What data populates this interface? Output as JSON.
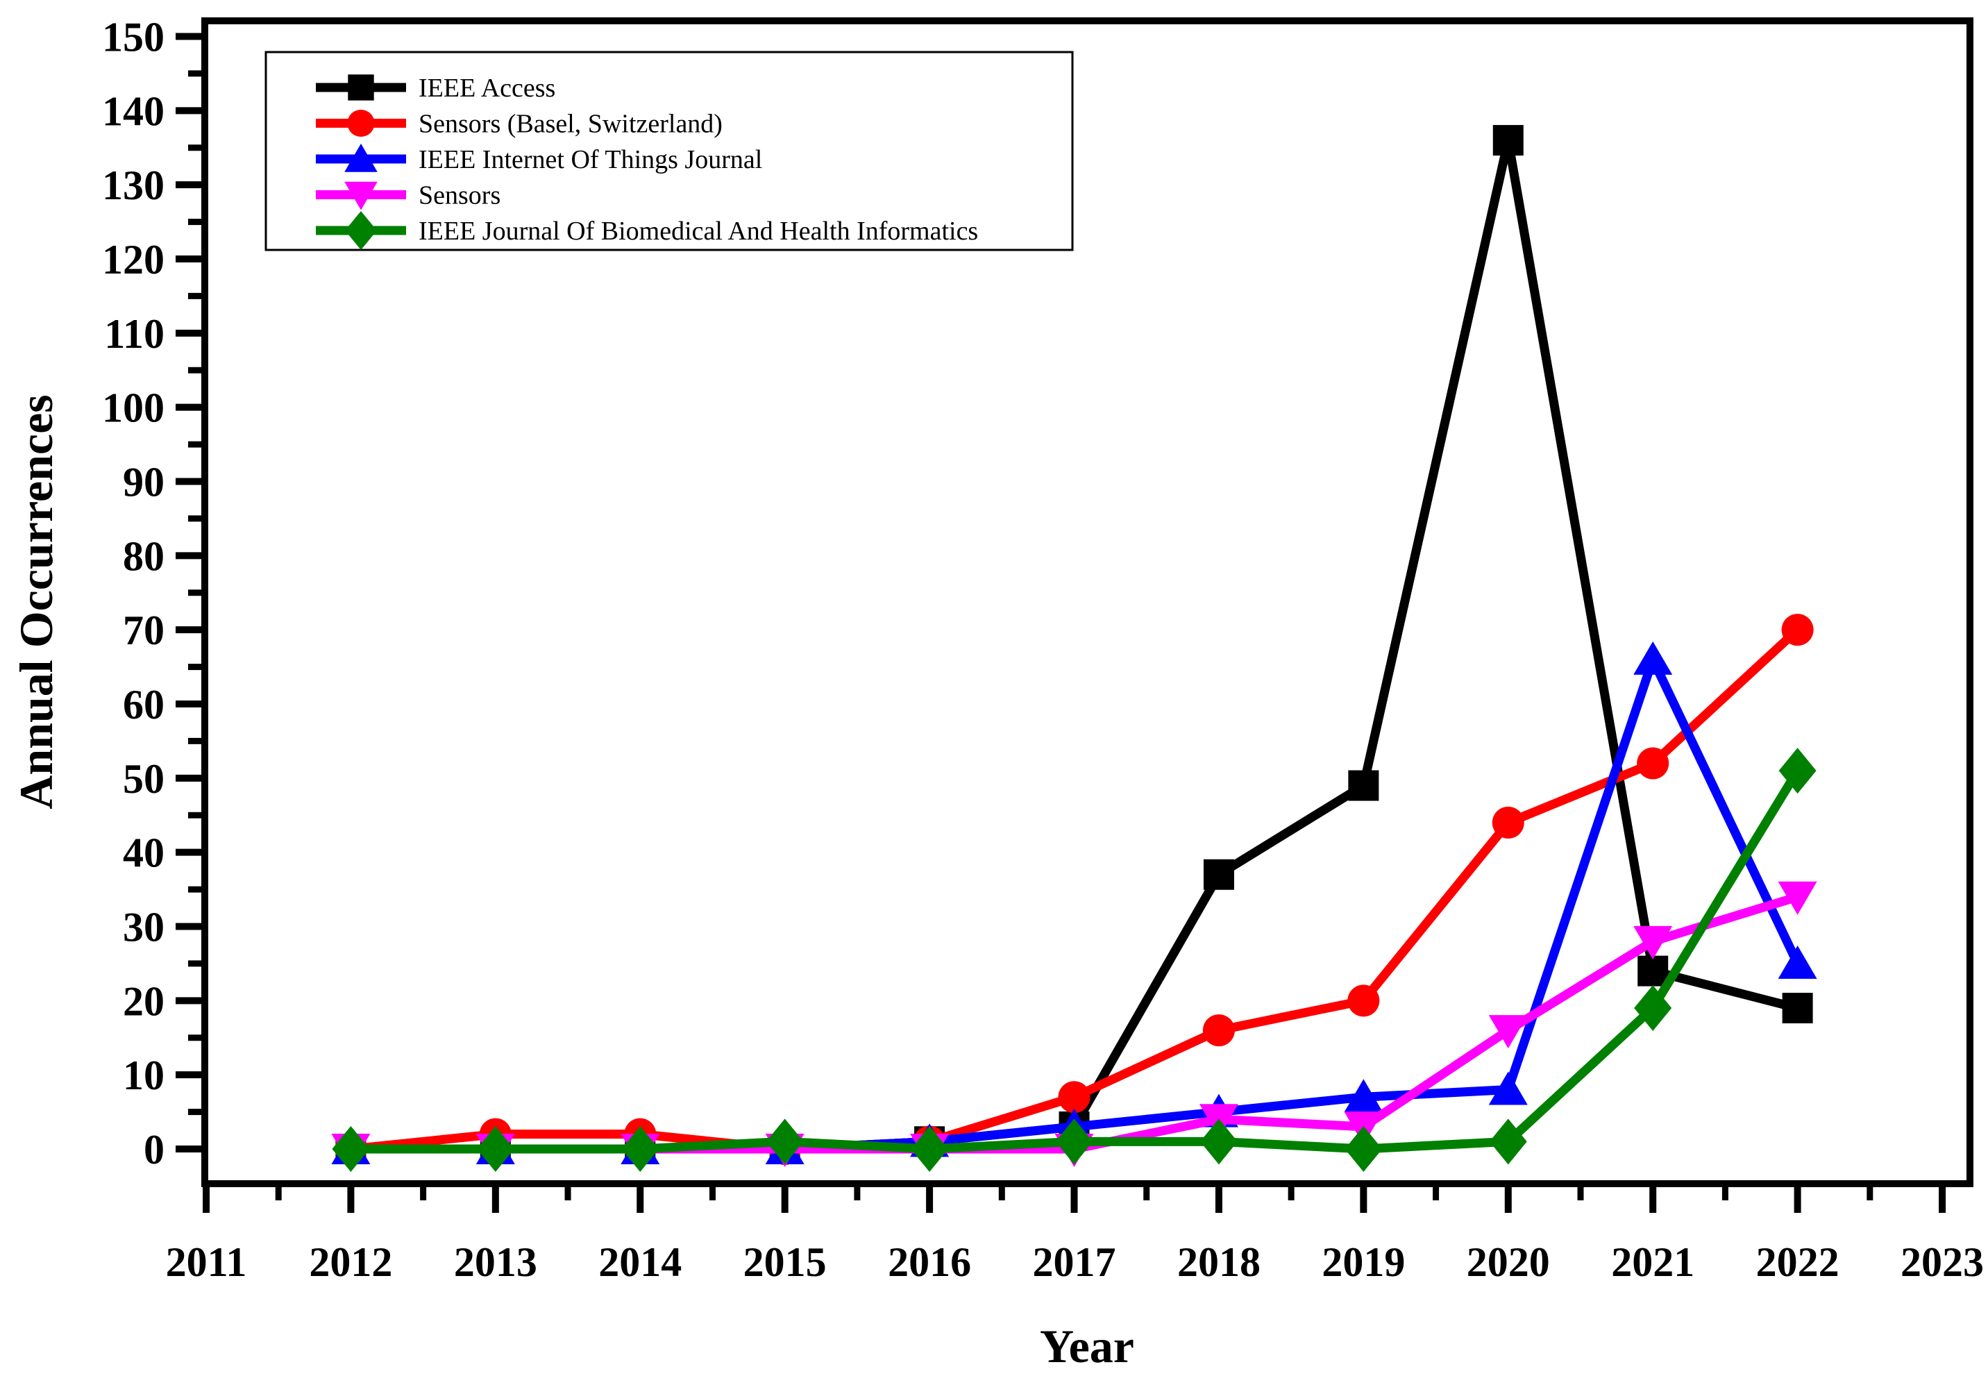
{
  "figure": {
    "background": "#ffffff",
    "axis_color": "#000000"
  },
  "chart_data": {
    "type": "line",
    "title": "",
    "xlabel": "Year",
    "ylabel": "Annual Occurrences",
    "x": [
      2012,
      2013,
      2014,
      2015,
      2016,
      2017,
      2018,
      2019,
      2020,
      2021,
      2022
    ],
    "series": [
      {
        "name": "IEEE Access",
        "color": "#000000",
        "marker": "square",
        "values": [
          0,
          0,
          0,
          0,
          1,
          3,
          37,
          49,
          136,
          24,
          19
        ]
      },
      {
        "name": "Sensors (Basel, Switzerland)",
        "color": "#ff0000",
        "marker": "circle",
        "values": [
          0,
          2,
          2,
          0,
          1,
          7,
          16,
          20,
          44,
          52,
          70
        ]
      },
      {
        "name": "IEEE Internet Of Things Journal",
        "color": "#0000ff",
        "marker": "triangle-up",
        "values": [
          0,
          0,
          0,
          0,
          1,
          3,
          5,
          7,
          8,
          66,
          25
        ]
      },
      {
        "name": "Sensors",
        "color": "#ff00ff",
        "marker": "triangle-down",
        "values": [
          0,
          0,
          0,
          0,
          0,
          0,
          4,
          3,
          16,
          28,
          34
        ]
      },
      {
        "name": "IEEE Journal Of Biomedical And Health Informatics",
        "color": "#008000",
        "marker": "diamond",
        "values": [
          0,
          0,
          0,
          1,
          0,
          1,
          1,
          0,
          1,
          19,
          51
        ]
      }
    ],
    "xticks": [
      2011,
      2012,
      2013,
      2014,
      2015,
      2016,
      2017,
      2018,
      2019,
      2020,
      2021,
      2022,
      2023
    ],
    "yticks": [
      0,
      10,
      20,
      30,
      40,
      50,
      60,
      70,
      80,
      90,
      100,
      110,
      120,
      130,
      140,
      150
    ],
    "xlim": [
      2011,
      2023.2
    ],
    "ylim": [
      -4.7,
      152.3
    ],
    "grid": false,
    "legend_position": "upper-left",
    "minor_ticks": true
  }
}
